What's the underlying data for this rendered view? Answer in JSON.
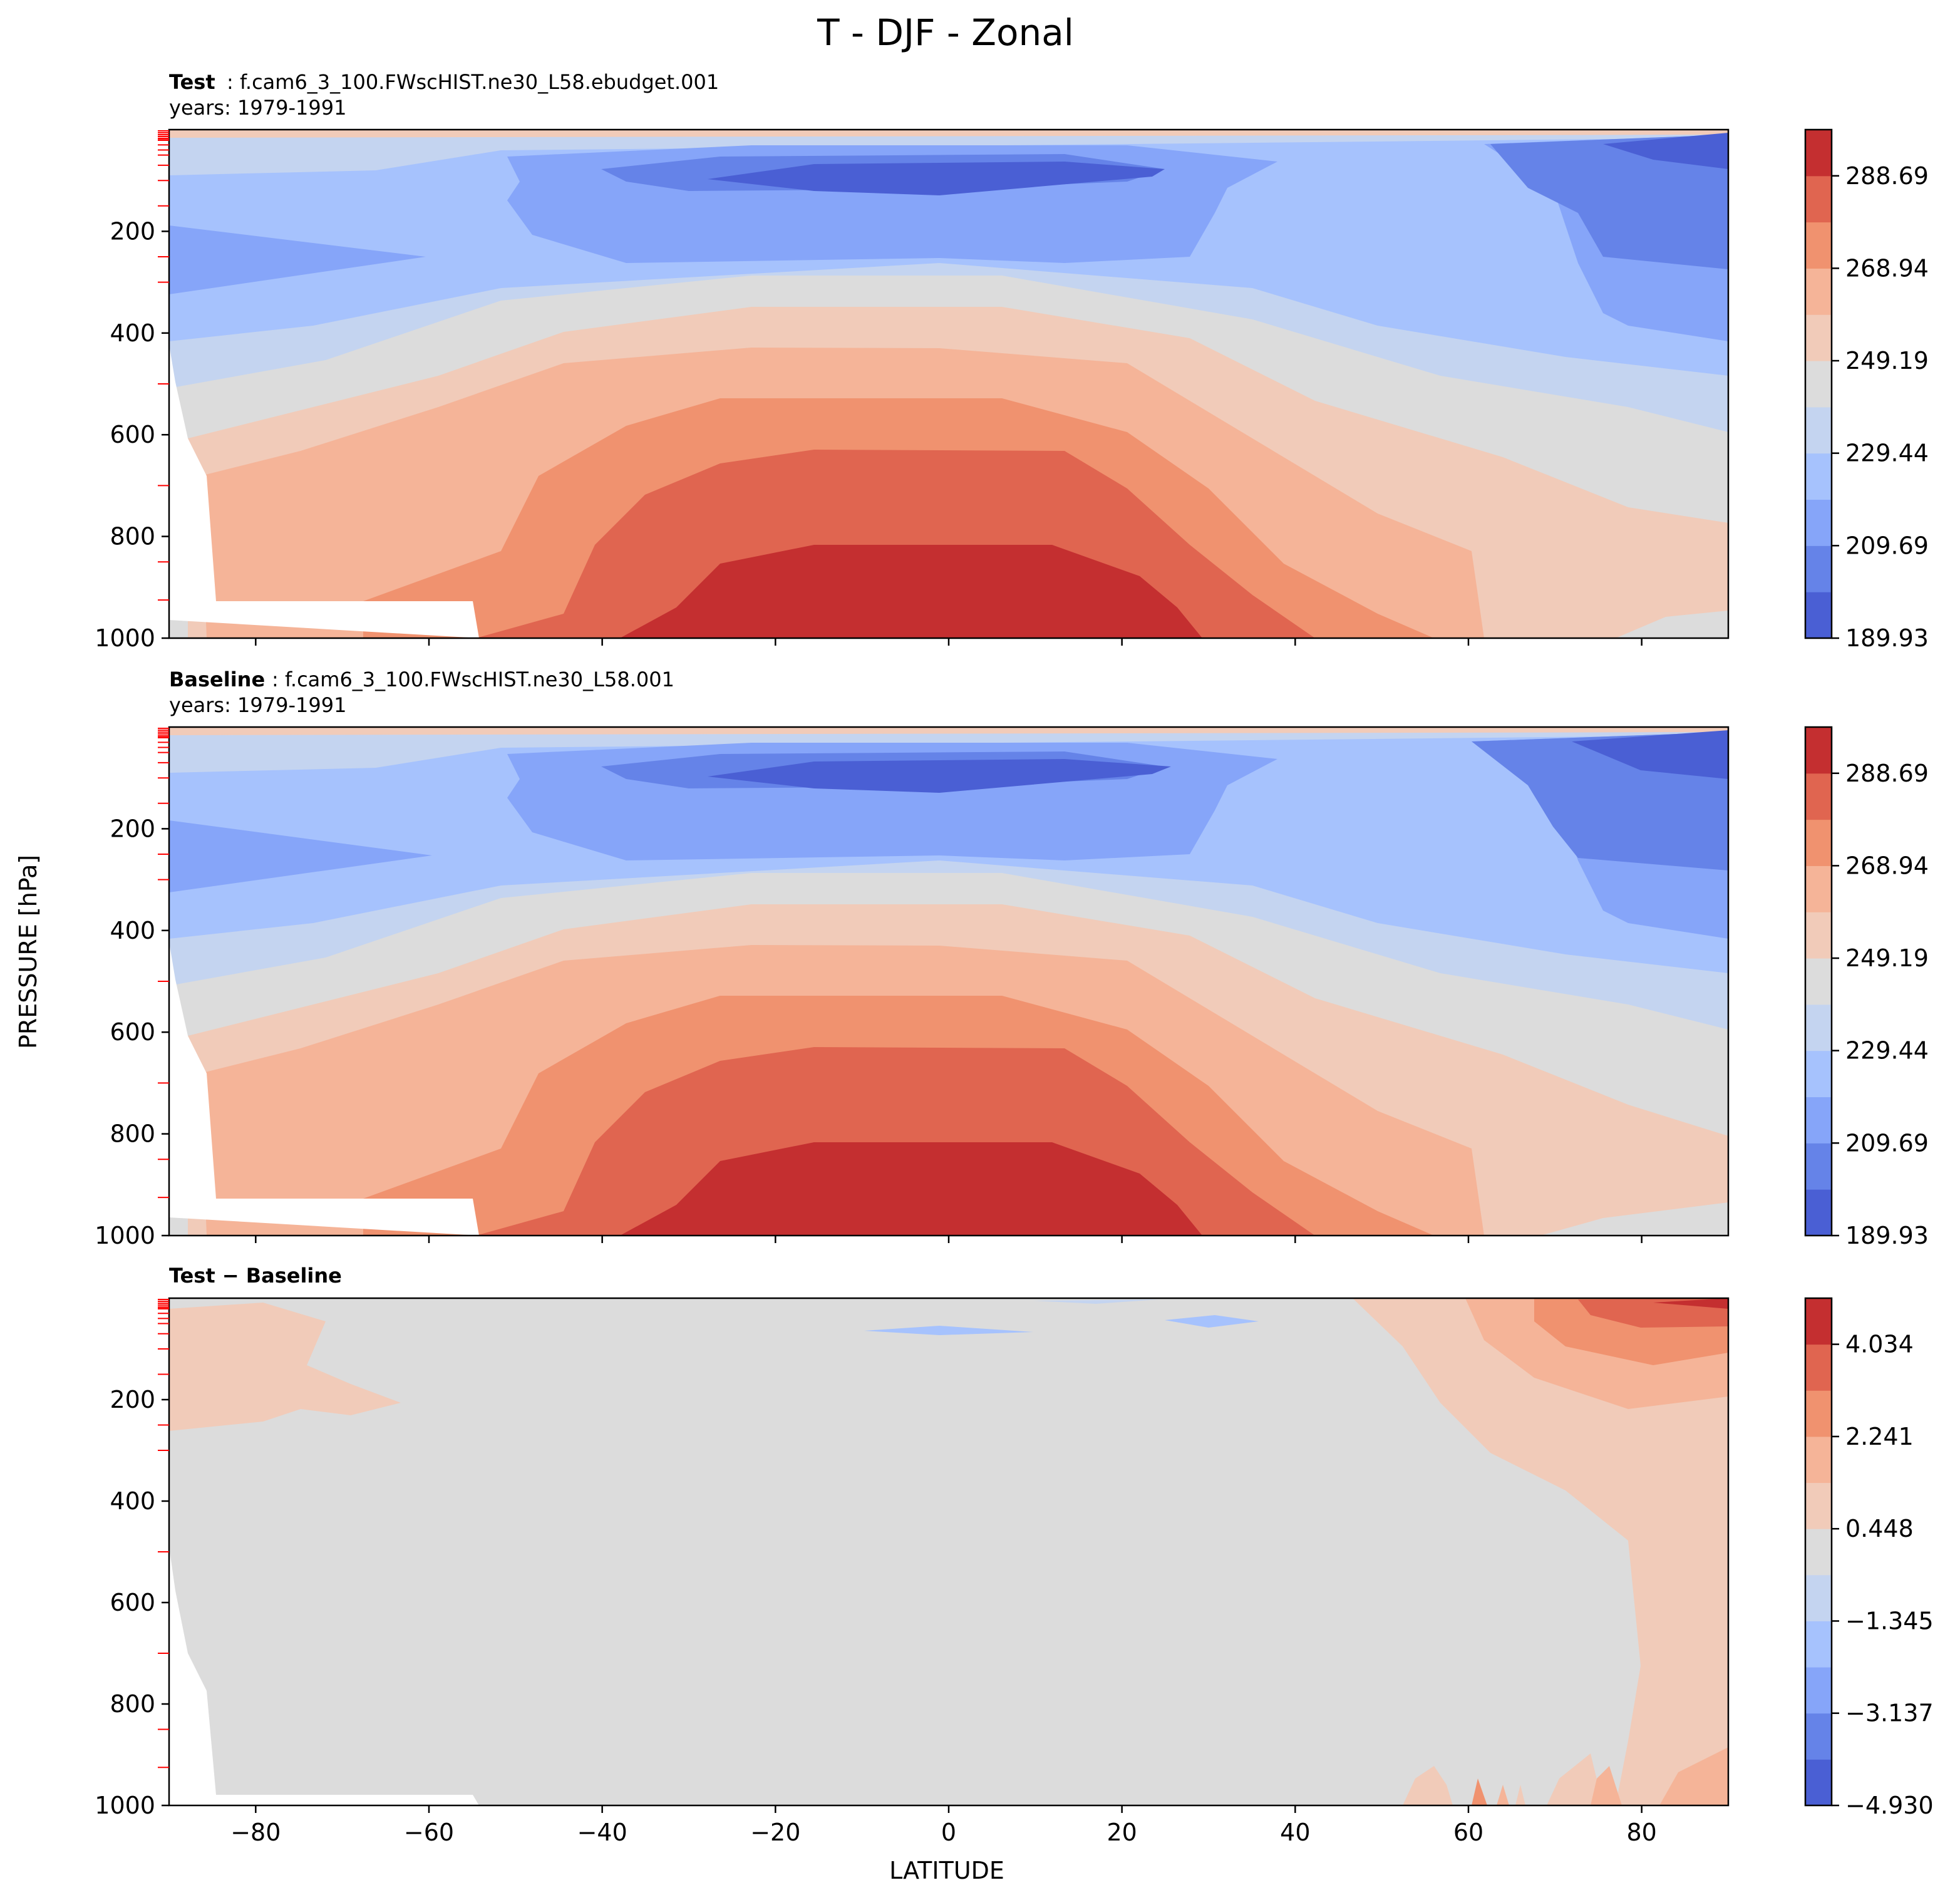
{
  "figure": {
    "suptitle": "T - DJF - Zonal",
    "ylabel": "PRESSURE [hPa]",
    "xlabel": "LATITUDE"
  },
  "colors": {
    "coolwarm": [
      "#4a5fd4",
      "#6583e8",
      "#86a5f9",
      "#a6c2fd",
      "#c4d4f0",
      "#dcdcdc",
      "#f1cbb9",
      "#f5b498",
      "#f0926f",
      "#e06550",
      "#c42f30"
    ],
    "missing": "#ffffff",
    "red_ticks": "#ff0000"
  },
  "chart_data": [
    {
      "type": "contourf",
      "panel": "test",
      "title_bold": "Test",
      "title_rest": ": f.cam6_3_100.FWscHIST.ne30_L58.ebudget.001",
      "years": "years: 1979-1991",
      "xlim": [
        -90,
        90
      ],
      "ylim": [
        1000,
        0
      ],
      "x_ticks": [
        "−80",
        "−60",
        "−40",
        "−20",
        "0",
        "20",
        "40",
        "60",
        "80"
      ],
      "y_ticks": [
        "200",
        "400",
        "600",
        "800",
        "1000"
      ],
      "colorbar": {
        "range": [
          189.93,
          298.56
        ],
        "tick_labels": [
          "288.69",
          "268.94",
          "249.19",
          "229.44",
          "209.69",
          "189.93"
        ],
        "tick_values": [
          288.69,
          268.94,
          249.19,
          229.44,
          209.69,
          189.93
        ]
      }
    },
    {
      "type": "contourf",
      "panel": "baseline",
      "title_bold": "Baseline",
      "title_rest": ": f.cam6_3_100.FWscHIST.ne30_L58.001",
      "years": "years: 1979-1991",
      "xlim": [
        -90,
        90
      ],
      "ylim": [
        1000,
        0
      ],
      "x_ticks": [
        "−80",
        "−60",
        "−40",
        "−20",
        "0",
        "20",
        "40",
        "60",
        "80"
      ],
      "y_ticks": [
        "200",
        "400",
        "600",
        "800",
        "1000"
      ],
      "colorbar": {
        "range": [
          189.93,
          298.56
        ],
        "tick_labels": [
          "288.69",
          "268.94",
          "249.19",
          "229.44",
          "209.69",
          "189.93"
        ],
        "tick_values": [
          288.69,
          268.94,
          249.19,
          229.44,
          209.69,
          189.93
        ]
      }
    },
    {
      "type": "contourf",
      "panel": "difference",
      "title_bold": "Test − Baseline",
      "xlim": [
        -90,
        90
      ],
      "ylim": [
        1000,
        0
      ],
      "x_ticks": [
        "−80",
        "−60",
        "−40",
        "−20",
        "0",
        "20",
        "40",
        "60",
        "80"
      ],
      "y_ticks": [
        "200",
        "400",
        "600",
        "800",
        "1000"
      ],
      "colorbar": {
        "range": [
          -4.93,
          4.93
        ],
        "tick_labels": [
          "4.034",
          "2.241",
          "0.448",
          "−1.345",
          "−3.137",
          "−4.930"
        ],
        "tick_values": [
          4.034,
          2.241,
          0.448,
          -1.345,
          -3.137,
          -4.93
        ]
      }
    }
  ]
}
